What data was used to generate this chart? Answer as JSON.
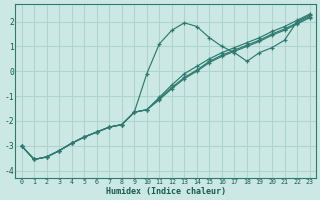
{
  "xlabel": "Humidex (Indice chaleur)",
  "background_color": "#cce8e4",
  "grid_color": "#aed4ce",
  "line_color": "#2d7a6e",
  "xlim_min": -0.5,
  "xlim_max": 23.5,
  "ylim_min": -4.3,
  "ylim_max": 2.7,
  "yticks": [
    -4,
    -3,
    -2,
    -1,
    0,
    1,
    2
  ],
  "xticks": [
    0,
    1,
    2,
    3,
    4,
    5,
    6,
    7,
    8,
    9,
    10,
    11,
    12,
    13,
    14,
    15,
    16,
    17,
    18,
    19,
    20,
    21,
    22,
    23
  ],
  "series": [
    [
      -3.0,
      -3.55,
      -3.45,
      -3.2,
      -2.9,
      -2.65,
      -2.45,
      -2.25,
      -2.15,
      -1.65,
      -0.1,
      1.1,
      1.65,
      1.95,
      1.8,
      1.35,
      1.0,
      0.75,
      0.4,
      0.75,
      0.95,
      1.25,
      2.0,
      2.25
    ],
    [
      -3.0,
      -3.55,
      -3.45,
      -3.2,
      -2.9,
      -2.65,
      -2.45,
      -2.25,
      -2.15,
      -1.65,
      -1.55,
      -1.05,
      -0.55,
      -0.1,
      0.2,
      0.5,
      0.75,
      0.95,
      1.15,
      1.35,
      1.6,
      1.8,
      2.05,
      2.3
    ],
    [
      -3.0,
      -3.55,
      -3.45,
      -3.2,
      -2.9,
      -2.65,
      -2.45,
      -2.25,
      -2.15,
      -1.65,
      -1.55,
      -1.1,
      -0.65,
      -0.25,
      0.05,
      0.4,
      0.65,
      0.85,
      1.05,
      1.25,
      1.5,
      1.7,
      1.95,
      2.2
    ],
    [
      -3.0,
      -3.55,
      -3.45,
      -3.2,
      -2.9,
      -2.65,
      -2.45,
      -2.25,
      -2.15,
      -1.65,
      -1.55,
      -1.15,
      -0.7,
      -0.3,
      0.0,
      0.35,
      0.6,
      0.8,
      1.0,
      1.2,
      1.45,
      1.65,
      1.9,
      2.15
    ]
  ]
}
